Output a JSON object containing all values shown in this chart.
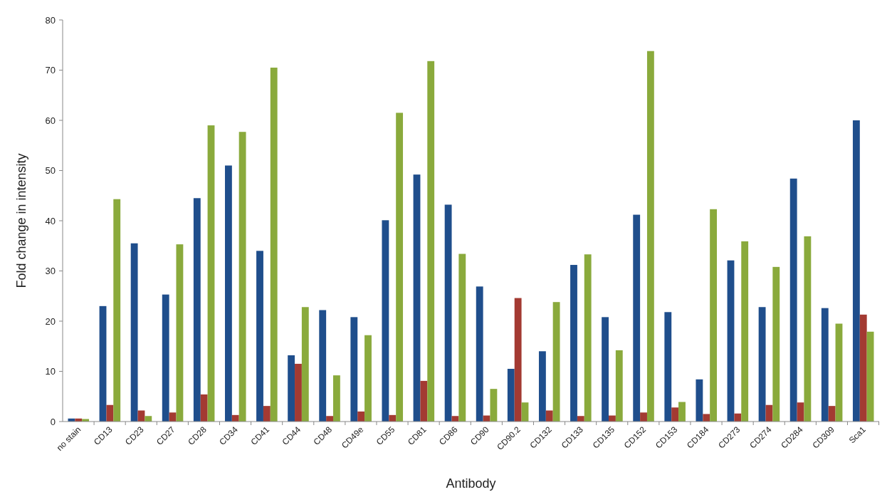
{
  "chart_data": {
    "type": "bar",
    "xlabel": "Antibody",
    "ylabel": "Fold change in intensity",
    "categories": [
      "no stain",
      "CD13",
      "CD23",
      "CD27",
      "CD28",
      "CD34",
      "CD41",
      "CD44",
      "CD48",
      "CD49e",
      "CD55",
      "CD81",
      "CD86",
      "CD90",
      "CD90.2",
      "CD132",
      "CD133",
      "CD135",
      "CD152",
      "CD153",
      "CD184",
      "CD273",
      "CD274",
      "CD284",
      "CD309",
      "Sca1"
    ],
    "series": [
      {
        "color": "#1f4e8c",
        "values": [
          0.6,
          23,
          35.5,
          25.3,
          44.5,
          51,
          34,
          13.2,
          22.2,
          20.8,
          40.1,
          49.2,
          43.2,
          26.9,
          10.5,
          14,
          31.2,
          20.8,
          41.2,
          21.8,
          8.4,
          32.1,
          22.8,
          48.4,
          22.6,
          60
        ]
      },
      {
        "color": "#a33a32",
        "values": [
          0.6,
          3.3,
          2.2,
          1.8,
          5.4,
          1.3,
          3.1,
          11.5,
          1.1,
          2.0,
          1.3,
          8.1,
          1.1,
          1.2,
          24.6,
          2.2,
          1.1,
          1.2,
          1.8,
          2.8,
          1.5,
          1.6,
          3.3,
          3.8,
          3.1,
          21.3
        ]
      },
      {
        "color": "#8aaa3c",
        "values": [
          0.5,
          44.3,
          1.1,
          35.3,
          59,
          57.7,
          70.5,
          22.8,
          9.2,
          17.2,
          61.5,
          71.8,
          33.4,
          6.5,
          3.8,
          23.8,
          33.3,
          14.2,
          73.8,
          3.9,
          42.3,
          35.9,
          30.8,
          36.9,
          19.5,
          17.9
        ]
      }
    ],
    "ylim": [
      0,
      80
    ],
    "yticks": [
      0,
      10,
      20,
      30,
      40,
      50,
      60,
      70,
      80
    ]
  }
}
